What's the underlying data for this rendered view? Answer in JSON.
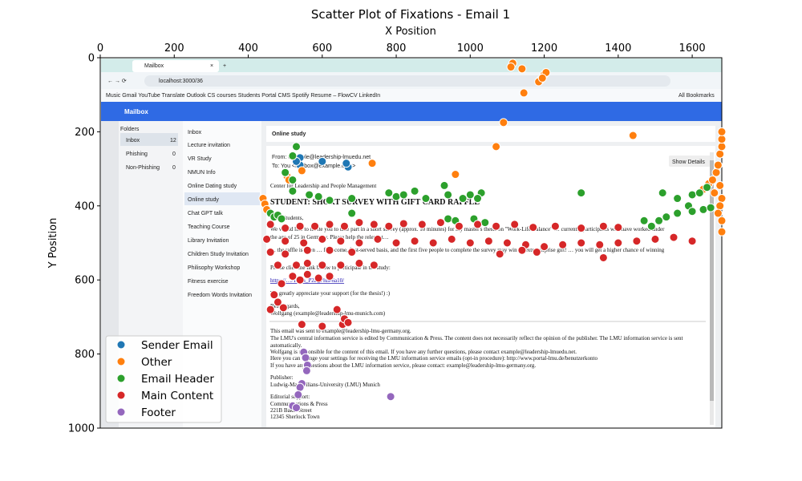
{
  "chart_data": {
    "type": "scatter",
    "title": "Scatter Plot of Fixations - Email 1",
    "xlabel": "X Position",
    "ylabel": "Y Position",
    "xlim": [
      0,
      1680
    ],
    "ylim": [
      1000,
      0
    ],
    "x_axis_position": "top",
    "x_ticks": [
      0,
      200,
      400,
      600,
      800,
      1000,
      1200,
      1400,
      1600
    ],
    "y_ticks": [
      0,
      200,
      400,
      600,
      800,
      1000
    ],
    "legend_position": "lower-left",
    "background": "screenshot of a Mailbox web app (Online study email)",
    "series": [
      {
        "name": "Sender Email",
        "color": "#1f77b4",
        "points": [
          [
            540,
            270
          ],
          [
            540,
            290
          ],
          [
            600,
            280
          ],
          [
            670,
            295
          ],
          [
            665,
            285
          ],
          [
            530,
            280
          ]
        ]
      },
      {
        "name": "Other",
        "color": "#ff7f0e",
        "points": [
          [
            1115,
            15
          ],
          [
            1110,
            25
          ],
          [
            1140,
            30
          ],
          [
            1200,
            45
          ],
          [
            1205,
            40
          ],
          [
            1190,
            60
          ],
          [
            1185,
            65
          ],
          [
            1195,
            55
          ],
          [
            1145,
            95
          ],
          [
            1090,
            175
          ],
          [
            1070,
            240
          ],
          [
            1440,
            210
          ],
          [
            735,
            285
          ],
          [
            545,
            305
          ],
          [
            505,
            320
          ],
          [
            510,
            330
          ],
          [
            960,
            315
          ],
          [
            440,
            380
          ],
          [
            445,
            395
          ],
          [
            450,
            410
          ],
          [
            1645,
            340
          ],
          [
            1655,
            330
          ],
          [
            1665,
            310
          ],
          [
            1670,
            290
          ],
          [
            1675,
            260
          ],
          [
            1680,
            240
          ],
          [
            1680,
            220
          ],
          [
            1680,
            200
          ],
          [
            1680,
            380
          ],
          [
            1675,
            400
          ],
          [
            1670,
            420
          ],
          [
            1680,
            440
          ],
          [
            1680,
            470
          ],
          [
            1630,
            355
          ],
          [
            1660,
            365
          ],
          [
            1675,
            345
          ]
        ]
      },
      {
        "name": "Email Header",
        "color": "#2ca02c",
        "points": [
          [
            520,
            265
          ],
          [
            530,
            240
          ],
          [
            500,
            310
          ],
          [
            520,
            330
          ],
          [
            520,
            360
          ],
          [
            565,
            370
          ],
          [
            590,
            375
          ],
          [
            620,
            385
          ],
          [
            680,
            380
          ],
          [
            780,
            365
          ],
          [
            800,
            375
          ],
          [
            820,
            370
          ],
          [
            850,
            360
          ],
          [
            880,
            380
          ],
          [
            930,
            345
          ],
          [
            940,
            370
          ],
          [
            980,
            380
          ],
          [
            1000,
            370
          ],
          [
            1030,
            365
          ],
          [
            1020,
            380
          ],
          [
            1300,
            365
          ],
          [
            1520,
            365
          ],
          [
            1560,
            380
          ],
          [
            1600,
            370
          ],
          [
            1620,
            365
          ],
          [
            1640,
            350
          ],
          [
            1590,
            400
          ],
          [
            1560,
            420
          ],
          [
            1530,
            430
          ],
          [
            1510,
            440
          ],
          [
            1490,
            455
          ],
          [
            1470,
            440
          ],
          [
            1630,
            410
          ],
          [
            1600,
            415
          ],
          [
            1650,
            405
          ],
          [
            460,
            420
          ],
          [
            470,
            430
          ],
          [
            480,
            425
          ],
          [
            490,
            435
          ],
          [
            680,
            420
          ],
          [
            940,
            435
          ],
          [
            960,
            440
          ],
          [
            1010,
            435
          ],
          [
            1040,
            445
          ]
        ]
      },
      {
        "name": "Main Content",
        "color": "#d62728",
        "points": [
          [
            460,
            450
          ],
          [
            500,
            460
          ],
          [
            540,
            455
          ],
          [
            580,
            455
          ],
          [
            620,
            450
          ],
          [
            660,
            455
          ],
          [
            700,
            445
          ],
          [
            740,
            450
          ],
          [
            780,
            455
          ],
          [
            820,
            448
          ],
          [
            870,
            450
          ],
          [
            920,
            445
          ],
          [
            970,
            455
          ],
          [
            1020,
            450
          ],
          [
            1070,
            455
          ],
          [
            1120,
            450
          ],
          [
            1170,
            458
          ],
          [
            1230,
            455
          ],
          [
            1300,
            460
          ],
          [
            1360,
            455
          ],
          [
            1400,
            458
          ],
          [
            450,
            490
          ],
          [
            500,
            495
          ],
          [
            550,
            500
          ],
          [
            600,
            490
          ],
          [
            650,
            495
          ],
          [
            700,
            500
          ],
          [
            750,
            490
          ],
          [
            800,
            500
          ],
          [
            850,
            495
          ],
          [
            900,
            500
          ],
          [
            950,
            490
          ],
          [
            1000,
            500
          ],
          [
            1050,
            495
          ],
          [
            1100,
            500
          ],
          [
            1150,
            505
          ],
          [
            1200,
            510
          ],
          [
            1250,
            505
          ],
          [
            1300,
            500
          ],
          [
            1350,
            505
          ],
          [
            1400,
            500
          ],
          [
            1450,
            495
          ],
          [
            1500,
            490
          ],
          [
            1550,
            485
          ],
          [
            1600,
            495
          ],
          [
            460,
            525
          ],
          [
            500,
            530
          ],
          [
            560,
            520
          ],
          [
            620,
            520
          ],
          [
            680,
            525
          ],
          [
            1080,
            530
          ],
          [
            1140,
            520
          ],
          [
            1180,
            525
          ],
          [
            1360,
            540
          ],
          [
            480,
            560
          ],
          [
            530,
            560
          ],
          [
            560,
            555
          ],
          [
            600,
            560
          ],
          [
            650,
            560
          ],
          [
            700,
            555
          ],
          [
            740,
            560
          ],
          [
            520,
            590
          ],
          [
            540,
            600
          ],
          [
            560,
            585
          ],
          [
            590,
            595
          ],
          [
            620,
            590
          ],
          [
            490,
            610
          ],
          [
            470,
            640
          ],
          [
            480,
            660
          ],
          [
            460,
            680
          ],
          [
            495,
            675
          ],
          [
            640,
            680
          ],
          [
            545,
            720
          ],
          [
            600,
            725
          ],
          [
            655,
            720
          ],
          [
            660,
            705
          ],
          [
            670,
            715
          ]
        ]
      },
      {
        "name": "Footer",
        "color": "#9467bd",
        "points": [
          [
            550,
            795
          ],
          [
            555,
            810
          ],
          [
            560,
            830
          ],
          [
            558,
            845
          ],
          [
            545,
            880
          ],
          [
            540,
            890
          ],
          [
            535,
            910
          ],
          [
            520,
            940
          ],
          [
            530,
            945
          ],
          [
            785,
            915
          ]
        ]
      }
    ]
  }
}
